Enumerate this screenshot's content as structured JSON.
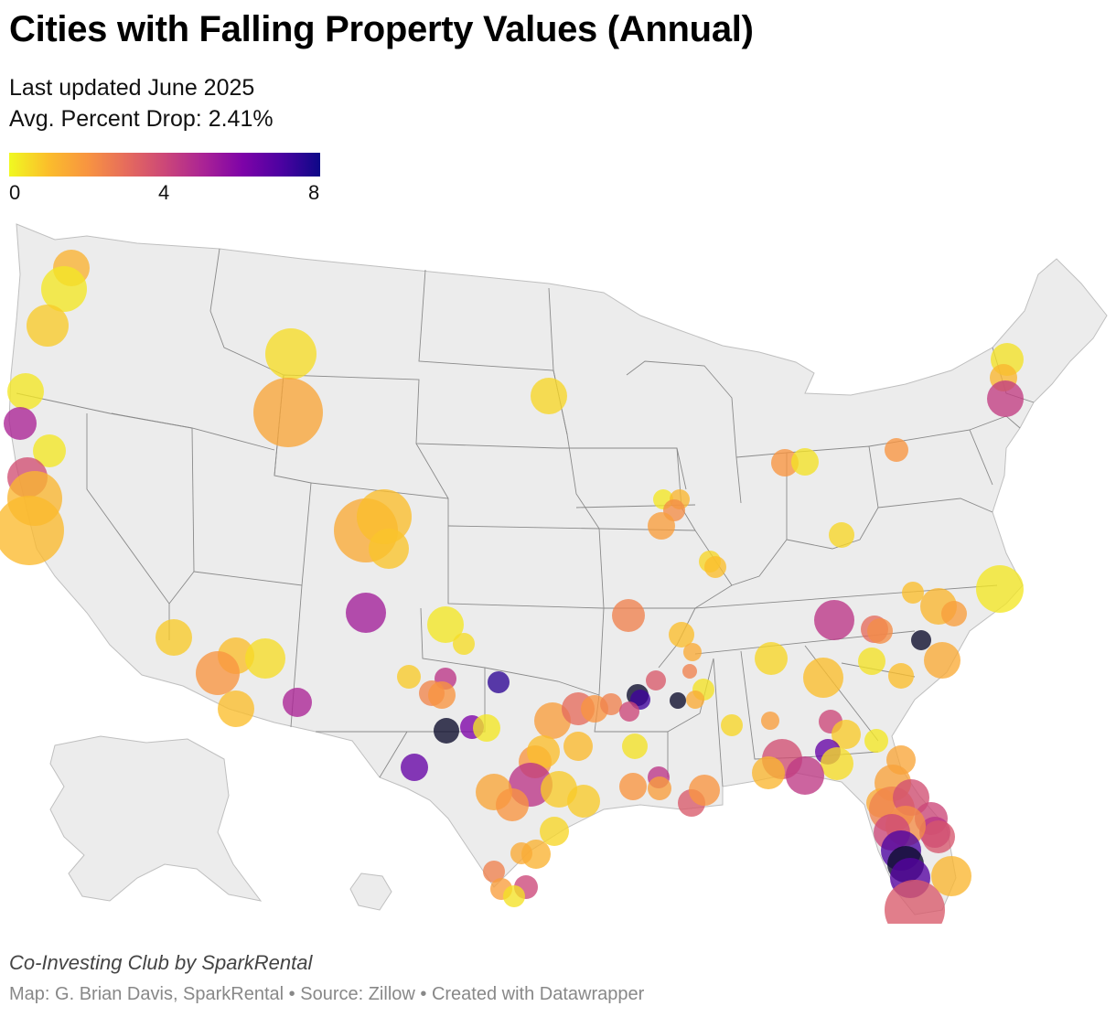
{
  "header": {
    "title": "Cities with Falling Property Values (Annual)",
    "subtitle_updated": "Last updated June 2025",
    "subtitle_avg": "Avg. Percent Drop: 2.41%"
  },
  "legend": {
    "scale": "plasma",
    "min": 0,
    "max": 8,
    "ticks": [
      "0",
      "4",
      "8"
    ],
    "colors": [
      "#f0f921",
      "#fbbe2b",
      "#f89540",
      "#e66c5c",
      "#cc4778",
      "#aa2395",
      "#7e03a8",
      "#4c02a1",
      "#0d0887"
    ]
  },
  "map": {
    "land_color": "#ececec",
    "border_color": "#8a8a8a",
    "marker_opacity": 0.78
  },
  "footer": {
    "credit": "Co-Investing Club by SparkRental",
    "source": "Map: G. Brian Davis, SparkRental • Source: Zillow • Created with Datawrapper"
  }
}
